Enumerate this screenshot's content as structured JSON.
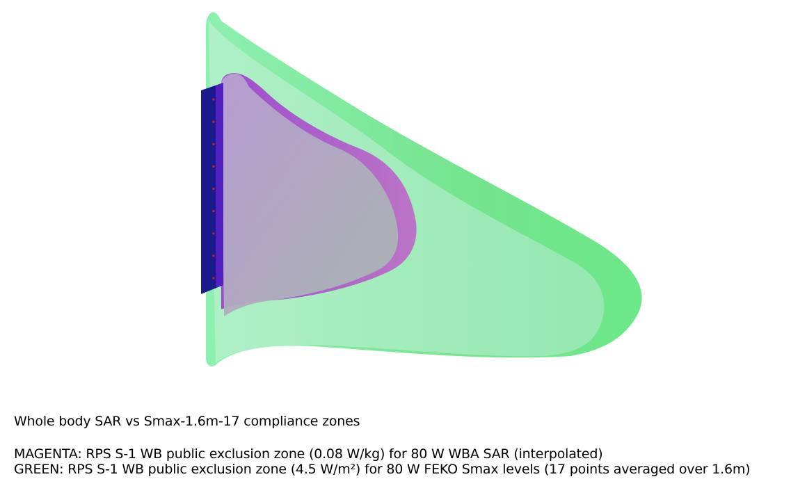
{
  "scene": {
    "colors": {
      "background": "#ffffff",
      "green_zone": "#7ee89a",
      "green_zone_light": "#a6eec0",
      "magenta_zone": "#b04fd0",
      "antenna_panel": "#1a1a8c",
      "antenna_points": "#cc2222"
    },
    "antenna_point_count": 9
  },
  "caption": {
    "title": "Whole body SAR vs Smax-1.6m-17 compliance zones",
    "magenta_line": "MAGENTA: RPS S-1 WB public exclusion zone (0.08 W/kg) for 80 W WBA SAR (interpolated)",
    "green_line": "GREEN: RPS S-1 WB public exclusion zone (4.5 W/m²) for 80 W FEKO Smax levels (17 points averaged over 1.6m)"
  }
}
